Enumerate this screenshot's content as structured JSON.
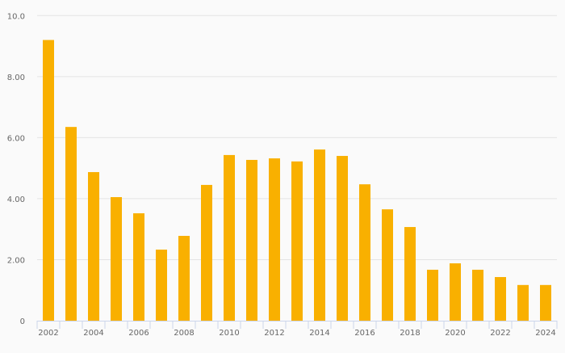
{
  "chart_data": {
    "type": "bar",
    "title": "",
    "xlabel": "",
    "ylabel": "",
    "ylim": [
      0,
      10
    ],
    "yticks": [
      0,
      2,
      4,
      6,
      8,
      10
    ],
    "ytick_labels": [
      "0",
      "2.00",
      "4.00",
      "6.00",
      "8.00",
      "10.0"
    ],
    "grid": true,
    "color": "#f9b000",
    "categories": [
      "2002",
      "2003",
      "2004",
      "2005",
      "2006",
      "2007",
      "2008",
      "2009",
      "2010",
      "2011",
      "2012",
      "2013",
      "2014",
      "2015",
      "2016",
      "2017",
      "2018",
      "2019",
      "2020",
      "2021",
      "2022",
      "2023",
      "2024"
    ],
    "xtick_labels_shown": [
      "2002",
      "2004",
      "2006",
      "2008",
      "2010",
      "2012",
      "2014",
      "2016",
      "2018",
      "2020",
      "2022",
      "2024"
    ],
    "values": [
      9.2,
      6.35,
      4.87,
      4.05,
      3.52,
      2.33,
      2.78,
      4.45,
      5.43,
      5.27,
      5.32,
      5.22,
      5.61,
      5.4,
      4.47,
      3.65,
      3.07,
      1.67,
      1.88,
      1.67,
      1.43,
      1.17,
      1.17
    ]
  }
}
